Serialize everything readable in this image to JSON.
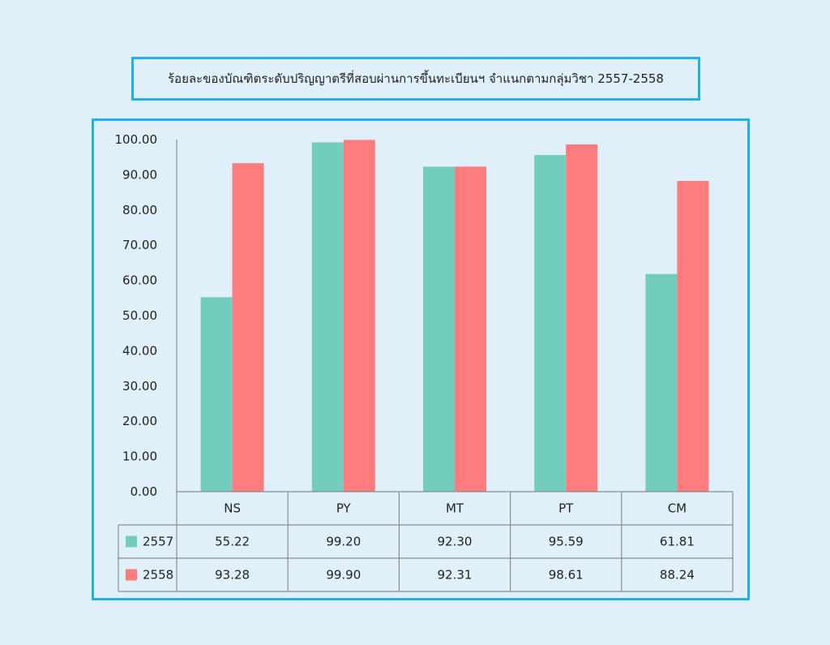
{
  "title": "ร้อยละของบัณฑิตระดับปริญญาตรีที่สอบผ่านการขึ้นทะเบียนฯ จำแนกตามกลุ่มวิชา 2557-2558",
  "chart_data": {
    "type": "bar",
    "categories": [
      "NS",
      "PY",
      "MT",
      "PT",
      "CM"
    ],
    "series": [
      {
        "name": "2557",
        "color": "#72cdbf",
        "values": [
          55.22,
          99.2,
          92.3,
          95.59,
          61.81
        ],
        "labels": [
          "55.22",
          "99.20",
          "92.30",
          "95.59",
          "61.81"
        ]
      },
      {
        "name": "2558",
        "color": "#fe7b7e",
        "values": [
          93.28,
          99.9,
          92.31,
          98.61,
          88.24
        ],
        "labels": [
          "93.28",
          "99.90",
          "92.31",
          "98.61",
          "88.24"
        ]
      }
    ],
    "ylim": [
      0,
      100
    ],
    "yticks": [
      "0.00",
      "10.00",
      "20.00",
      "30.00",
      "40.00",
      "50.00",
      "60.00",
      "70.00",
      "80.00",
      "90.00",
      "100.00"
    ],
    "data_table": true,
    "grid": false
  }
}
